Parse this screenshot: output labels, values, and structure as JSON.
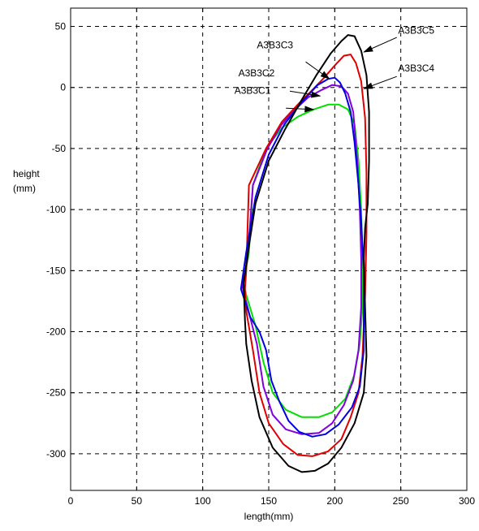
{
  "chart_data": {
    "type": "line",
    "title": "",
    "xlabel": "length(mm)",
    "ylabel": [
      "height",
      "(mm)"
    ],
    "xlim": [
      0,
      300
    ],
    "ylim": [
      -330,
      65
    ],
    "xticks": [
      0,
      50,
      100,
      150,
      200,
      250,
      300
    ],
    "yticks": [
      50,
      0,
      -50,
      -100,
      -150,
      -200,
      -250,
      -300
    ],
    "grid": true,
    "legend": "none",
    "series": [
      {
        "name": "A3B3C1",
        "color": "#00e000",
        "points": [
          [
            138,
            -80
          ],
          [
            148,
            -50
          ],
          [
            160,
            -33
          ],
          [
            172,
            -24
          ],
          [
            184,
            -18
          ],
          [
            195,
            -14
          ],
          [
            203,
            -14
          ],
          [
            210,
            -18
          ],
          [
            215,
            -30
          ],
          [
            218,
            -60
          ],
          [
            220,
            -100
          ],
          [
            221,
            -140
          ],
          [
            221,
            -180
          ],
          [
            219,
            -210
          ],
          [
            215,
            -235
          ],
          [
            208,
            -255
          ],
          [
            198,
            -266
          ],
          [
            188,
            -270
          ],
          [
            175,
            -270
          ],
          [
            163,
            -264
          ],
          [
            153,
            -250
          ],
          [
            146,
            -225
          ],
          [
            140,
            -195
          ],
          [
            133,
            -170
          ],
          [
            131,
            -160
          ],
          [
            135,
            -135
          ],
          [
            138,
            -80
          ]
        ]
      },
      {
        "name": "A3B3C2",
        "color": "#8000e0",
        "points": [
          [
            138,
            -80
          ],
          [
            149,
            -50
          ],
          [
            160,
            -30
          ],
          [
            170,
            -18
          ],
          [
            180,
            -8
          ],
          [
            190,
            -2
          ],
          [
            198,
            2
          ],
          [
            205,
            1
          ],
          [
            210,
            -5
          ],
          [
            214,
            -20
          ],
          [
            217,
            -60
          ],
          [
            219,
            -100
          ],
          [
            220,
            -140
          ],
          [
            220,
            -180
          ],
          [
            218,
            -215
          ],
          [
            214,
            -240
          ],
          [
            207,
            -260
          ],
          [
            198,
            -275
          ],
          [
            188,
            -283
          ],
          [
            175,
            -284
          ],
          [
            163,
            -280
          ],
          [
            153,
            -268
          ],
          [
            146,
            -245
          ],
          [
            141,
            -210
          ],
          [
            134,
            -180
          ],
          [
            130,
            -163
          ],
          [
            134,
            -140
          ],
          [
            138,
            -80
          ]
        ]
      },
      {
        "name": "A3B3C3",
        "color": "#e00000",
        "points": [
          [
            135,
            -80
          ],
          [
            148,
            -50
          ],
          [
            160,
            -28
          ],
          [
            172,
            -14
          ],
          [
            183,
            -2
          ],
          [
            192,
            8
          ],
          [
            200,
            18
          ],
          [
            207,
            26
          ],
          [
            212,
            27
          ],
          [
            216,
            20
          ],
          [
            220,
            5
          ],
          [
            223,
            -25
          ],
          [
            224,
            -70
          ],
          [
            224,
            -120
          ],
          [
            223,
            -170
          ],
          [
            221,
            -220
          ],
          [
            218,
            -250
          ],
          [
            212,
            -270
          ],
          [
            205,
            -288
          ],
          [
            195,
            -298
          ],
          [
            183,
            -302
          ],
          [
            172,
            -301
          ],
          [
            161,
            -292
          ],
          [
            150,
            -275
          ],
          [
            143,
            -250
          ],
          [
            138,
            -215
          ],
          [
            133,
            -183
          ],
          [
            132,
            -165
          ],
          [
            133,
            -150
          ],
          [
            135,
            -80
          ]
        ]
      },
      {
        "name": "A3B3C4",
        "color": "#0000e0",
        "points": [
          [
            129,
            -165
          ],
          [
            133,
            -135
          ],
          [
            140,
            -90
          ],
          [
            150,
            -55
          ],
          [
            162,
            -30
          ],
          [
            175,
            -12
          ],
          [
            187,
            2
          ],
          [
            195,
            7
          ],
          [
            200,
            8
          ],
          [
            204,
            4
          ],
          [
            208,
            -5
          ],
          [
            212,
            -20
          ],
          [
            215,
            -45
          ],
          [
            218,
            -80
          ],
          [
            220,
            -110
          ],
          [
            222,
            -150
          ],
          [
            222,
            -180
          ],
          [
            222,
            -215
          ],
          [
            219,
            -245
          ],
          [
            213,
            -262
          ],
          [
            203,
            -276
          ],
          [
            193,
            -284
          ],
          [
            183,
            -286
          ],
          [
            173,
            -282
          ],
          [
            165,
            -273
          ],
          [
            158,
            -257
          ],
          [
            152,
            -240
          ],
          [
            148,
            -215
          ],
          [
            143,
            -200
          ],
          [
            136,
            -188
          ],
          [
            129,
            -165
          ]
        ]
      },
      {
        "name": "A3B3C5",
        "color": "#000000",
        "points": [
          [
            131,
            -160
          ],
          [
            135,
            -130
          ],
          [
            140,
            -95
          ],
          [
            150,
            -60
          ],
          [
            162,
            -35
          ],
          [
            174,
            -12
          ],
          [
            186,
            10
          ],
          [
            197,
            28
          ],
          [
            205,
            38
          ],
          [
            210,
            43
          ],
          [
            215,
            42
          ],
          [
            220,
            30
          ],
          [
            224,
            10
          ],
          [
            226,
            -20
          ],
          [
            226,
            -60
          ],
          [
            225,
            -95
          ],
          [
            223,
            -115
          ],
          [
            222,
            -140
          ],
          [
            223,
            -180
          ],
          [
            224,
            -220
          ],
          [
            222,
            -250
          ],
          [
            215,
            -275
          ],
          [
            205,
            -295
          ],
          [
            195,
            -308
          ],
          [
            185,
            -314
          ],
          [
            175,
            -315
          ],
          [
            165,
            -310
          ],
          [
            153,
            -295
          ],
          [
            143,
            -270
          ],
          [
            137,
            -240
          ],
          [
            133,
            -210
          ],
          [
            132,
            -190
          ],
          [
            131,
            -160
          ]
        ]
      }
    ],
    "annotations": [
      {
        "label": "A3B3C5",
        "text_xy": [
          248,
          44
        ],
        "arrow_from": [
          247,
          41
        ],
        "arrow_to": [
          222,
          29
        ]
      },
      {
        "label": "A3B3C4",
        "text_xy": [
          248,
          13
        ],
        "arrow_from": [
          247,
          9
        ],
        "arrow_to": [
          222,
          -1
        ]
      },
      {
        "label": "A3B3C3",
        "text_xy": [
          141,
          32
        ],
        "arrow_from": [
          178,
          21
        ],
        "arrow_to": [
          196,
          7
        ]
      },
      {
        "label": "A3B3C2",
        "text_xy": [
          127,
          9
        ],
        "arrow_from": [
          166,
          -3
        ],
        "arrow_to": [
          189,
          -7
        ]
      },
      {
        "label": "A3B3C1",
        "text_xy": [
          124,
          -5
        ],
        "arrow_from": [
          163,
          -17
        ],
        "arrow_to": [
          184,
          -18
        ]
      }
    ]
  }
}
